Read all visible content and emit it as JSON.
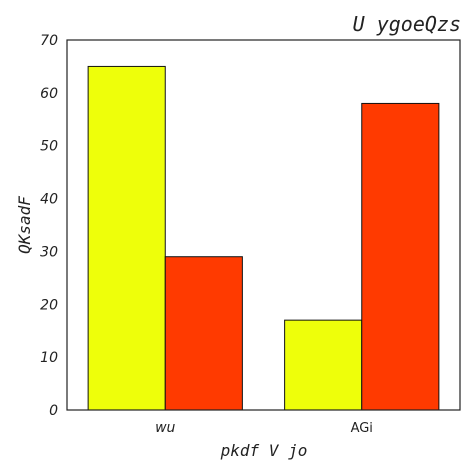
{
  "chart_data": {
    "type": "bar",
    "title": "U ygoeQzs",
    "xlabel": "pkdf V jo",
    "ylabel": "QKsadF",
    "categories": [
      "wu",
      "AGi"
    ],
    "series": [
      {
        "values": [
          65,
          17
        ],
        "color": "#eeff0a"
      },
      {
        "values": [
          29,
          58
        ],
        "color": "#ff3a00"
      }
    ],
    "ylim": [
      0,
      70
    ],
    "yticks": [
      0,
      10,
      20,
      30,
      40,
      50,
      60,
      70
    ],
    "grid": false,
    "legend": "none"
  }
}
